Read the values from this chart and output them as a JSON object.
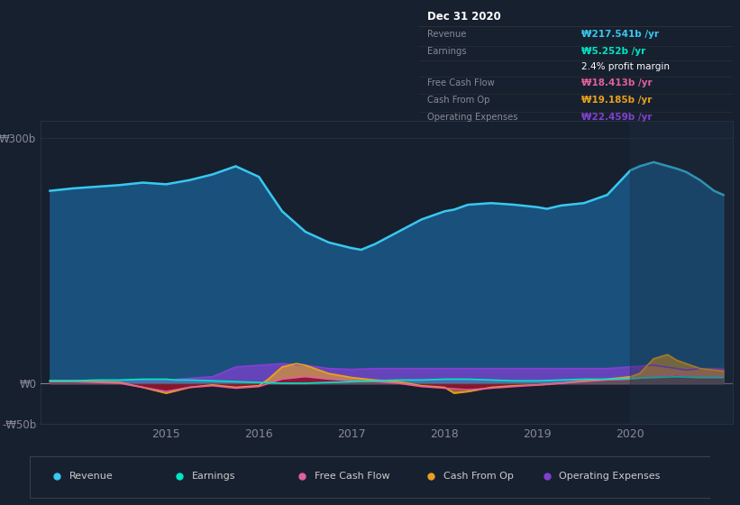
{
  "bg_color": "#17202e",
  "plot_bg_color": "#17202e",
  "grid_color": "#253040",
  "ylim": [
    -50,
    320
  ],
  "yticks": [
    -50,
    0,
    300
  ],
  "ytick_labels": [
    "-₩50b",
    "₩0",
    "₩300b"
  ],
  "xtick_years": [
    2015,
    2016,
    2017,
    2018,
    2019,
    2020
  ],
  "legend_items": [
    {
      "label": "Revenue",
      "color": "#38c8f0"
    },
    {
      "label": "Earnings",
      "color": "#00e6c3"
    },
    {
      "label": "Free Cash Flow",
      "color": "#e060a0"
    },
    {
      "label": "Cash From Op",
      "color": "#e8a020"
    },
    {
      "label": "Operating Expenses",
      "color": "#8040d0"
    }
  ],
  "title_box": {
    "date": "Dec 31 2020",
    "labels": [
      "Revenue",
      "Earnings",
      "",
      "Free Cash Flow",
      "Cash From Op",
      "Operating Expenses"
    ],
    "values": [
      "₩217.541b /yr",
      "₩5.252b /yr",
      "2.4% profit margin",
      "₩18.413b /yr",
      "₩19.185b /yr",
      "₩22.459b /yr"
    ],
    "val_colors": [
      "#38c8f0",
      "#00e6c3",
      "#ffffff",
      "#e060a0",
      "#e8a020",
      "#8040d0"
    ]
  },
  "revenue_x": [
    2013.75,
    2014.0,
    2014.25,
    2014.5,
    2014.75,
    2015.0,
    2015.25,
    2015.5,
    2015.75,
    2016.0,
    2016.1,
    2016.25,
    2016.5,
    2016.75,
    2017.0,
    2017.1,
    2017.25,
    2017.5,
    2017.75,
    2018.0,
    2018.1,
    2018.25,
    2018.5,
    2018.75,
    2019.0,
    2019.1,
    2019.25,
    2019.5,
    2019.75,
    2020.0,
    2020.1,
    2020.25,
    2020.5,
    2020.6,
    2020.75,
    2020.9,
    2021.0
  ],
  "revenue_y": [
    235,
    238,
    240,
    242,
    245,
    243,
    248,
    255,
    265,
    252,
    235,
    210,
    185,
    172,
    165,
    163,
    170,
    185,
    200,
    210,
    212,
    218,
    220,
    218,
    215,
    213,
    217,
    220,
    230,
    260,
    265,
    270,
    262,
    258,
    248,
    235,
    230
  ],
  "earnings_x": [
    2013.75,
    2014.0,
    2014.25,
    2014.5,
    2014.75,
    2015.0,
    2015.1,
    2015.25,
    2015.5,
    2015.75,
    2016.0,
    2016.25,
    2016.5,
    2016.75,
    2017.0,
    2017.25,
    2017.5,
    2017.75,
    2018.0,
    2018.25,
    2018.5,
    2018.75,
    2019.0,
    2019.25,
    2019.5,
    2019.75,
    2020.0,
    2020.25,
    2020.5,
    2020.75,
    2021.0
  ],
  "earnings_y": [
    3,
    3,
    4,
    4,
    5,
    5,
    4,
    4,
    3,
    2,
    1,
    0,
    0,
    1,
    2,
    3,
    4,
    4,
    5,
    5,
    4,
    3,
    3,
    4,
    5,
    5,
    6,
    7,
    8,
    7,
    7
  ],
  "operating_expenses_x": [
    2013.75,
    2014.0,
    2014.5,
    2015.0,
    2015.5,
    2015.75,
    2016.0,
    2016.25,
    2016.5,
    2016.75,
    2017.0,
    2017.25,
    2017.5,
    2017.75,
    2018.0,
    2018.25,
    2018.5,
    2018.75,
    2019.0,
    2019.25,
    2019.5,
    2019.75,
    2020.0,
    2020.25,
    2020.5,
    2020.6,
    2020.75,
    2021.0
  ],
  "operating_expenses_y": [
    2,
    2,
    3,
    4,
    8,
    20,
    22,
    24,
    22,
    18,
    17,
    18,
    18,
    18,
    18,
    18,
    18,
    18,
    18,
    18,
    18,
    18,
    20,
    22,
    18,
    16,
    18,
    18
  ],
  "cash_from_op_x": [
    2013.75,
    2014.0,
    2014.25,
    2014.5,
    2014.75,
    2015.0,
    2015.25,
    2015.5,
    2015.75,
    2016.0,
    2016.1,
    2016.25,
    2016.4,
    2016.5,
    2016.75,
    2017.0,
    2017.25,
    2017.5,
    2017.75,
    2018.0,
    2018.1,
    2018.25,
    2018.5,
    2018.75,
    2019.0,
    2019.25,
    2019.5,
    2019.75,
    2020.0,
    2020.1,
    2020.25,
    2020.4,
    2020.5,
    2020.75,
    2021.0
  ],
  "cash_from_op_y": [
    3,
    3,
    2,
    1,
    -5,
    -12,
    -5,
    -2,
    -5,
    -3,
    5,
    20,
    24,
    22,
    12,
    7,
    4,
    2,
    -3,
    -5,
    -12,
    -10,
    -5,
    -3,
    -2,
    0,
    3,
    5,
    8,
    12,
    30,
    35,
    28,
    18,
    15
  ],
  "free_cash_flow_x": [
    2013.75,
    2014.0,
    2014.25,
    2014.5,
    2014.75,
    2015.0,
    2015.25,
    2015.5,
    2015.75,
    2016.0,
    2016.25,
    2016.5,
    2016.75,
    2017.0,
    2017.25,
    2017.5,
    2017.75,
    2018.0,
    2018.25,
    2018.5,
    2018.75,
    2019.0,
    2019.25,
    2019.5,
    2019.75,
    2020.0,
    2020.25,
    2020.5,
    2020.75,
    2021.0
  ],
  "free_cash_flow_y": [
    2,
    2,
    1,
    0,
    -5,
    -10,
    -5,
    -3,
    -6,
    -4,
    5,
    8,
    5,
    3,
    2,
    0,
    -4,
    -6,
    -8,
    -6,
    -4,
    -2,
    0,
    2,
    4,
    5,
    8,
    10,
    8,
    8
  ]
}
